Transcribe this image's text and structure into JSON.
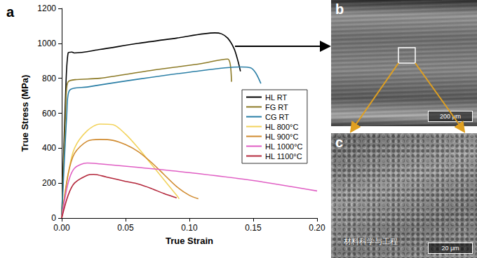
{
  "chart_data": {
    "type": "line",
    "title": "a",
    "x_label": "True Strain",
    "y_label": "True Stress (MPa)",
    "xlim": [
      0,
      0.2
    ],
    "xticks": [
      {
        "value": 0,
        "label": "0.00"
      },
      {
        "value": 0.05,
        "label": "0.05"
      },
      {
        "value": 0.1,
        "label": "0.10"
      },
      {
        "value": 0.15,
        "label": "0.15"
      },
      {
        "value": 0.2,
        "label": "0.20"
      }
    ],
    "ylim": [
      0,
      1200
    ],
    "yticks": [
      0,
      200,
      400,
      600,
      800,
      1000,
      1200
    ],
    "legend": "right",
    "grid": false,
    "series": [
      {
        "name": "HL RT",
        "color": "#000000",
        "x": [
          0,
          0.003,
          0.005,
          0.008,
          0.01,
          0.03,
          0.06,
          0.09,
          0.12,
          0.125,
          0.13,
          0.135,
          0.138,
          0.14
        ],
        "values": [
          0,
          700,
          945,
          950,
          945,
          965,
          1000,
          1030,
          1060,
          1055,
          1030,
          970,
          900,
          840
        ]
      },
      {
        "name": "FG RT",
        "color": "#8c7a26",
        "x": [
          0,
          0.003,
          0.005,
          0.03,
          0.07,
          0.11,
          0.13,
          0.132,
          0.133
        ],
        "values": [
          0,
          600,
          780,
          800,
          845,
          885,
          910,
          880,
          780
        ]
      },
      {
        "name": "CG RT",
        "color": "#2b7fa6",
        "x": [
          0,
          0.004,
          0.006,
          0.02,
          0.06,
          0.1,
          0.14,
          0.148,
          0.152,
          0.156
        ],
        "values": [
          0,
          600,
          730,
          750,
          795,
          835,
          865,
          860,
          830,
          770
        ]
      },
      {
        "name": "HL 800°C",
        "color": "#f2d35c",
        "x": [
          0,
          0.005,
          0.01,
          0.02,
          0.03,
          0.04,
          0.05,
          0.06,
          0.07,
          0.08,
          0.09,
          0.092
        ],
        "values": [
          0,
          250,
          400,
          500,
          538,
          535,
          480,
          400,
          310,
          220,
          130,
          110
        ]
      },
      {
        "name": "HL 900°C",
        "color": "#d08a2e",
        "x": [
          0,
          0.005,
          0.01,
          0.02,
          0.03,
          0.04,
          0.05,
          0.06,
          0.07,
          0.08,
          0.09,
          0.1,
          0.107
        ],
        "values": [
          0,
          250,
          370,
          440,
          450,
          445,
          420,
          380,
          320,
          250,
          180,
          130,
          110
        ]
      },
      {
        "name": "HL 1000°C",
        "color": "#e05fc4",
        "x": [
          0,
          0.005,
          0.01,
          0.02,
          0.03,
          0.06,
          0.1,
          0.15,
          0.2
        ],
        "values": [
          0,
          200,
          285,
          315,
          310,
          290,
          260,
          215,
          155
        ]
      },
      {
        "name": "HL 1100°C",
        "color": "#b3263a",
        "x": [
          0,
          0.005,
          0.01,
          0.02,
          0.025,
          0.035,
          0.05,
          0.06,
          0.07,
          0.08,
          0.09
        ],
        "values": [
          0,
          130,
          200,
          245,
          250,
          235,
          210,
          195,
          170,
          140,
          115
        ]
      }
    ]
  },
  "panels": [
    {
      "label": "b",
      "scale_bar": "200 μm"
    },
    {
      "label": "c",
      "scale_bar": "20 μm",
      "watermark": "材料科学与工程"
    }
  ]
}
